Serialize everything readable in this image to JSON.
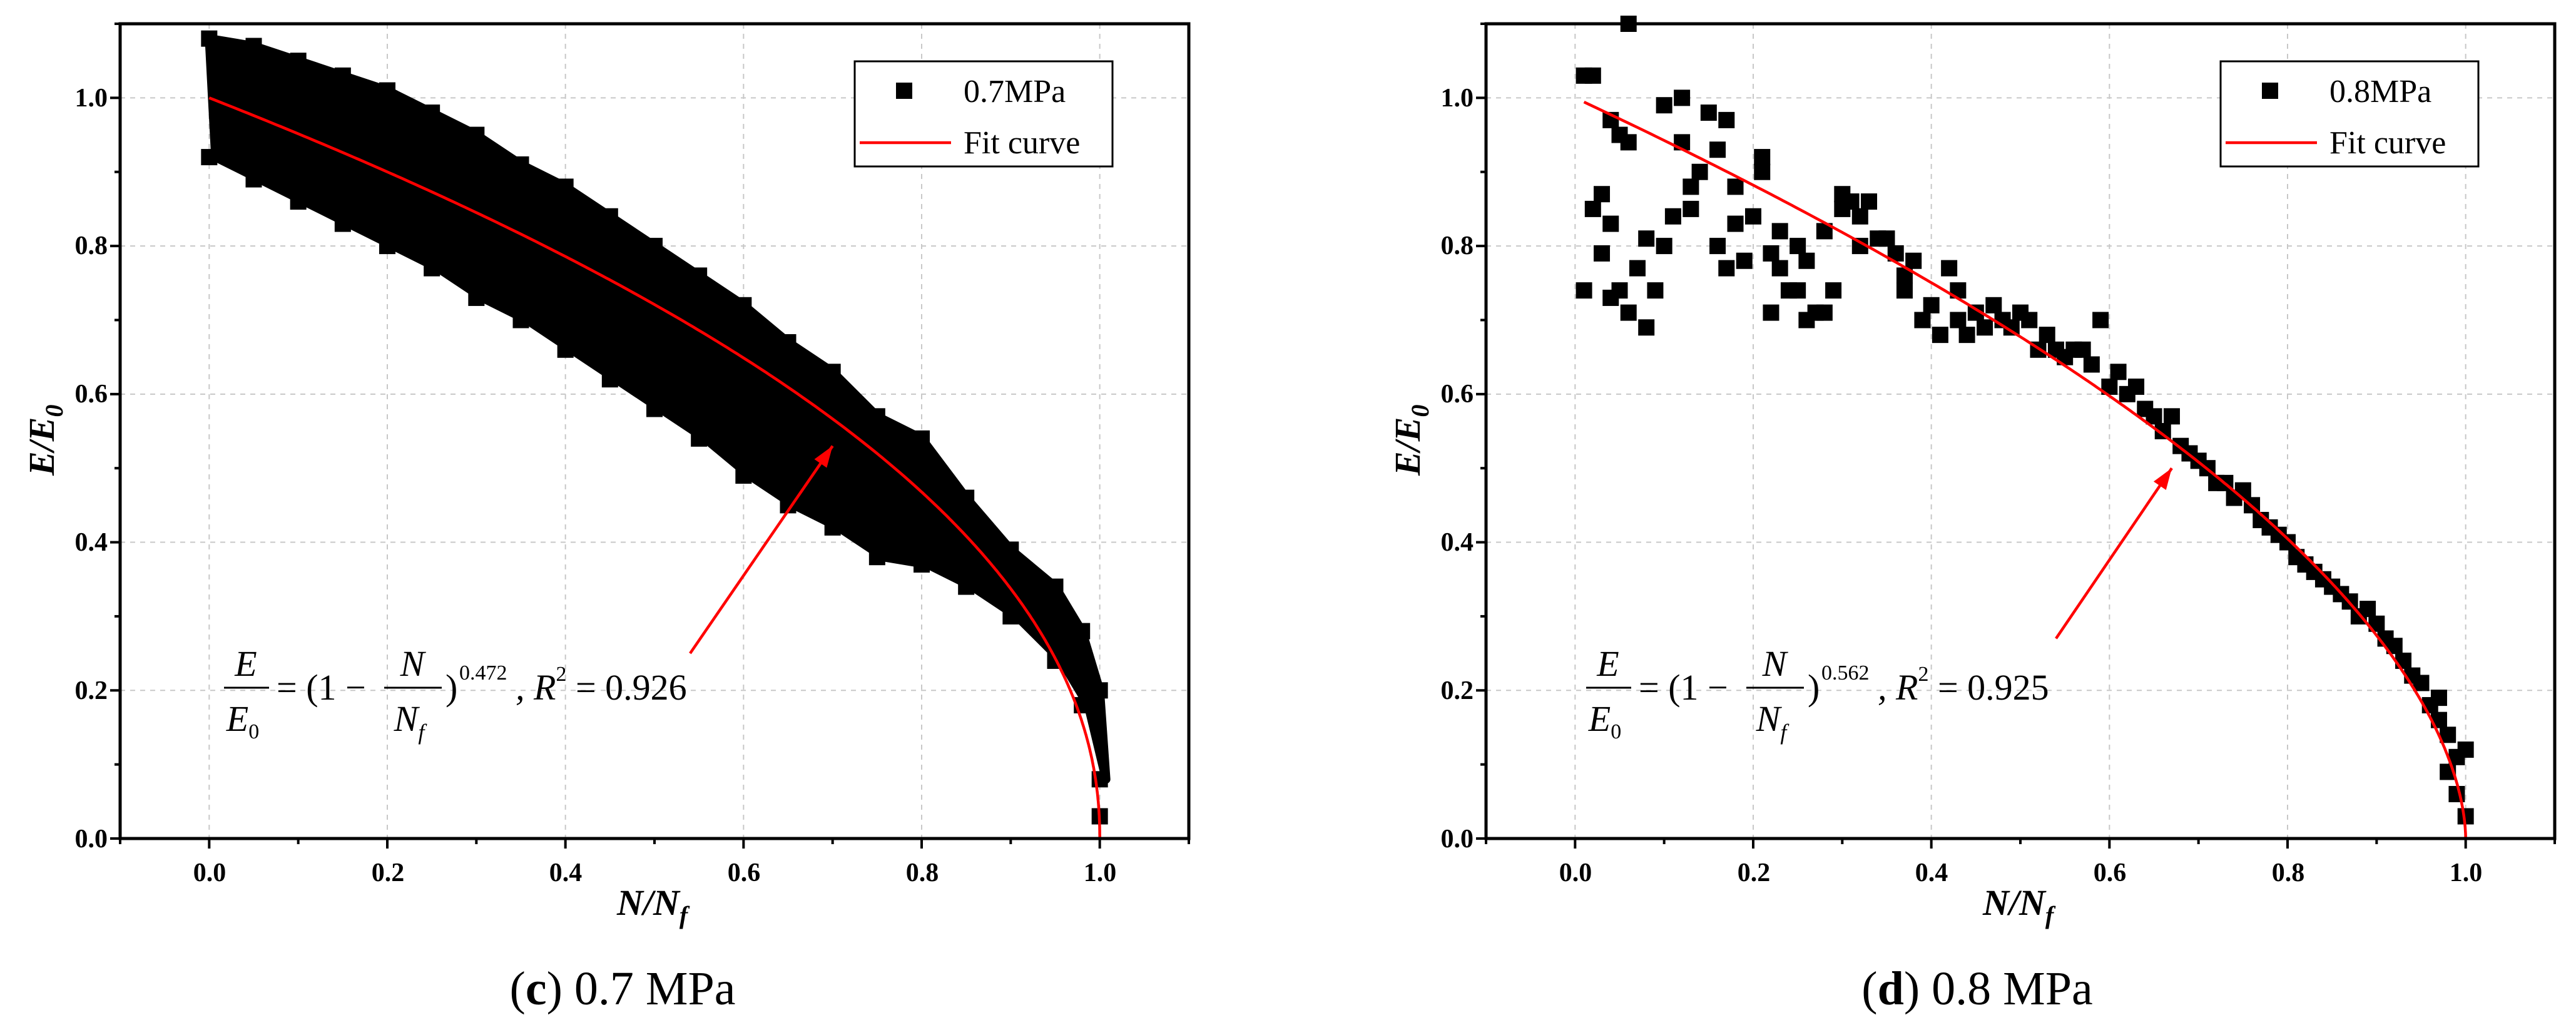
{
  "chart_data": [
    {
      "type": "scatter",
      "panel_label": "c",
      "caption_text": "0.7 MPa",
      "xlabel_main": "N/N",
      "xlabel_sub": "f",
      "ylabel_main": "E/E",
      "ylabel_sub": "0",
      "xlim": [
        -0.1,
        1.1
      ],
      "ylim": [
        0.0,
        1.1
      ],
      "x_ticks": [
        "0.0",
        "0.2",
        "0.4",
        "0.6",
        "0.8",
        "1.0"
      ],
      "y_ticks": [
        "0.0",
        "0.2",
        "0.4",
        "0.6",
        "0.8",
        "1.0"
      ],
      "grid": true,
      "legend_position": "top-right",
      "series": [
        {
          "name": "0.7MPa",
          "kind": "band",
          "color": "#000000",
          "x": [
            0.0,
            0.05,
            0.1,
            0.15,
            0.2,
            0.25,
            0.3,
            0.35,
            0.4,
            0.45,
            0.5,
            0.55,
            0.6,
            0.65,
            0.7,
            0.75,
            0.8,
            0.85,
            0.9,
            0.95,
            0.98,
            1.0
          ],
          "y_low": [
            0.92,
            0.89,
            0.86,
            0.83,
            0.8,
            0.77,
            0.73,
            0.7,
            0.66,
            0.62,
            0.58,
            0.54,
            0.49,
            0.45,
            0.42,
            0.38,
            0.37,
            0.34,
            0.3,
            0.24,
            0.18,
            0.08
          ],
          "y_high": [
            1.08,
            1.07,
            1.05,
            1.03,
            1.01,
            0.98,
            0.95,
            0.91,
            0.88,
            0.84,
            0.8,
            0.76,
            0.72,
            0.67,
            0.63,
            0.57,
            0.54,
            0.46,
            0.39,
            0.34,
            0.28,
            0.2
          ]
        },
        {
          "name": "Fit curve",
          "kind": "fit",
          "color": "#ff0000",
          "formula": "E/E0 = (1 - N/Nf)^0.472",
          "exponent": 0.472,
          "r_squared": 0.926
        }
      ],
      "equation": {
        "num1": "E",
        "den1": "E",
        "den1_sub": "0",
        "mid": "= (1 − ",
        "num2": "N",
        "den2": "N",
        "den2_sub": "f",
        "close": ")",
        "exponent": "0.472",
        "r2_prefix": ", R",
        "r2_power": "2",
        "r2_suffix": " = 0.926"
      },
      "arrow_tip": [
        0.7,
        0.53
      ],
      "arrow_tail": [
        0.54,
        0.25
      ]
    },
    {
      "type": "scatter",
      "panel_label": "d",
      "caption_text": "0.8 MPa",
      "xlabel_main": "N/N",
      "xlabel_sub": "f",
      "ylabel_main": "E/E",
      "ylabel_sub": "0",
      "xlim": [
        -0.1,
        1.1
      ],
      "ylim": [
        0.0,
        1.1
      ],
      "x_ticks": [
        "0.0",
        "0.2",
        "0.4",
        "0.6",
        "0.8",
        "1.0"
      ],
      "y_ticks": [
        "0.0",
        "0.2",
        "0.4",
        "0.6",
        "0.8",
        "1.0"
      ],
      "grid": true,
      "legend_position": "top-right",
      "series": [
        {
          "name": "0.8MPa",
          "kind": "points",
          "color": "#000000",
          "points": [
            [
              0.01,
              1.03
            ],
            [
              0.02,
              1.03
            ],
            [
              0.06,
              1.1
            ],
            [
              0.01,
              0.74
            ],
            [
              0.02,
              0.85
            ],
            [
              0.03,
              0.87
            ],
            [
              0.04,
              0.83
            ],
            [
              0.04,
              0.97
            ],
            [
              0.05,
              0.95
            ],
            [
              0.03,
              0.79
            ],
            [
              0.04,
              0.73
            ],
            [
              0.05,
              0.74
            ],
            [
              0.06,
              0.71
            ],
            [
              0.06,
              0.94
            ],
            [
              0.07,
              0.77
            ],
            [
              0.08,
              0.69
            ],
            [
              0.08,
              0.81
            ],
            [
              0.09,
              0.74
            ],
            [
              0.1,
              0.99
            ],
            [
              0.1,
              0.8
            ],
            [
              0.11,
              0.84
            ],
            [
              0.12,
              1.0
            ],
            [
              0.12,
              0.94
            ],
            [
              0.13,
              0.88
            ],
            [
              0.13,
              0.85
            ],
            [
              0.14,
              0.9
            ],
            [
              0.15,
              0.98
            ],
            [
              0.16,
              0.93
            ],
            [
              0.16,
              0.8
            ],
            [
              0.17,
              0.97
            ],
            [
              0.17,
              0.77
            ],
            [
              0.18,
              0.83
            ],
            [
              0.18,
              0.88
            ],
            [
              0.19,
              0.78
            ],
            [
              0.2,
              0.84
            ],
            [
              0.21,
              0.92
            ],
            [
              0.21,
              0.9
            ],
            [
              0.22,
              0.71
            ],
            [
              0.22,
              0.79
            ],
            [
              0.23,
              0.77
            ],
            [
              0.23,
              0.82
            ],
            [
              0.24,
              0.74
            ],
            [
              0.25,
              0.74
            ],
            [
              0.25,
              0.8
            ],
            [
              0.26,
              0.7
            ],
            [
              0.26,
              0.78
            ],
            [
              0.27,
              0.71
            ],
            [
              0.28,
              0.71
            ],
            [
              0.28,
              0.82
            ],
            [
              0.29,
              0.74
            ],
            [
              0.3,
              0.87
            ],
            [
              0.3,
              0.85
            ],
            [
              0.31,
              0.86
            ],
            [
              0.32,
              0.84
            ],
            [
              0.32,
              0.8
            ],
            [
              0.33,
              0.86
            ],
            [
              0.34,
              0.81
            ],
            [
              0.35,
              0.81
            ],
            [
              0.36,
              0.79
            ],
            [
              0.37,
              0.76
            ],
            [
              0.37,
              0.74
            ],
            [
              0.38,
              0.78
            ],
            [
              0.39,
              0.7
            ],
            [
              0.4,
              0.72
            ],
            [
              0.41,
              0.68
            ],
            [
              0.42,
              0.77
            ],
            [
              0.43,
              0.7
            ],
            [
              0.43,
              0.74
            ],
            [
              0.44,
              0.68
            ],
            [
              0.45,
              0.71
            ],
            [
              0.46,
              0.69
            ],
            [
              0.47,
              0.72
            ],
            [
              0.48,
              0.7
            ],
            [
              0.49,
              0.69
            ],
            [
              0.5,
              0.71
            ],
            [
              0.51,
              0.7
            ],
            [
              0.52,
              0.66
            ],
            [
              0.53,
              0.68
            ],
            [
              0.54,
              0.66
            ],
            [
              0.55,
              0.65
            ],
            [
              0.56,
              0.66
            ],
            [
              0.57,
              0.66
            ],
            [
              0.58,
              0.64
            ],
            [
              0.59,
              0.7
            ],
            [
              0.6,
              0.61
            ],
            [
              0.61,
              0.63
            ],
            [
              0.62,
              0.6
            ],
            [
              0.63,
              0.61
            ],
            [
              0.64,
              0.58
            ],
            [
              0.65,
              0.57
            ],
            [
              0.66,
              0.55
            ],
            [
              0.67,
              0.57
            ],
            [
              0.68,
              0.53
            ],
            [
              0.69,
              0.52
            ],
            [
              0.7,
              0.51
            ],
            [
              0.71,
              0.5
            ],
            [
              0.72,
              0.48
            ],
            [
              0.73,
              0.48
            ],
            [
              0.74,
              0.46
            ],
            [
              0.75,
              0.47
            ],
            [
              0.76,
              0.45
            ],
            [
              0.77,
              0.43
            ],
            [
              0.78,
              0.42
            ],
            [
              0.79,
              0.41
            ],
            [
              0.8,
              0.4
            ],
            [
              0.81,
              0.38
            ],
            [
              0.82,
              0.37
            ],
            [
              0.83,
              0.36
            ],
            [
              0.84,
              0.35
            ],
            [
              0.85,
              0.34
            ],
            [
              0.86,
              0.33
            ],
            [
              0.87,
              0.32
            ],
            [
              0.88,
              0.3
            ],
            [
              0.89,
              0.31
            ],
            [
              0.9,
              0.29
            ],
            [
              0.91,
              0.27
            ],
            [
              0.92,
              0.26
            ],
            [
              0.93,
              0.24
            ],
            [
              0.94,
              0.22
            ],
            [
              0.95,
              0.21
            ],
            [
              0.96,
              0.18
            ],
            [
              0.97,
              0.16
            ],
            [
              0.98,
              0.14
            ],
            [
              0.99,
              0.11
            ],
            [
              0.99,
              0.06
            ],
            [
              1.0,
              0.03
            ],
            [
              1.0,
              0.12
            ],
            [
              0.98,
              0.09
            ],
            [
              0.97,
              0.19
            ]
          ]
        },
        {
          "name": "Fit curve",
          "kind": "fit",
          "color": "#ff0000",
          "formula": "E/E0 = (1 - N/Nf)^0.562",
          "exponent": 0.562,
          "r_squared": 0.925
        }
      ],
      "equation": {
        "num1": "E",
        "den1": "E",
        "den1_sub": "0",
        "mid": "= (1 − ",
        "num2": "N",
        "den2": "N",
        "den2_sub": "f",
        "close": ")",
        "exponent": "0.562",
        "r2_prefix": ", R",
        "r2_power": "2",
        "r2_suffix": " = 0.925"
      },
      "arrow_tip": [
        0.67,
        0.5
      ],
      "arrow_tail": [
        0.54,
        0.27
      ]
    }
  ]
}
